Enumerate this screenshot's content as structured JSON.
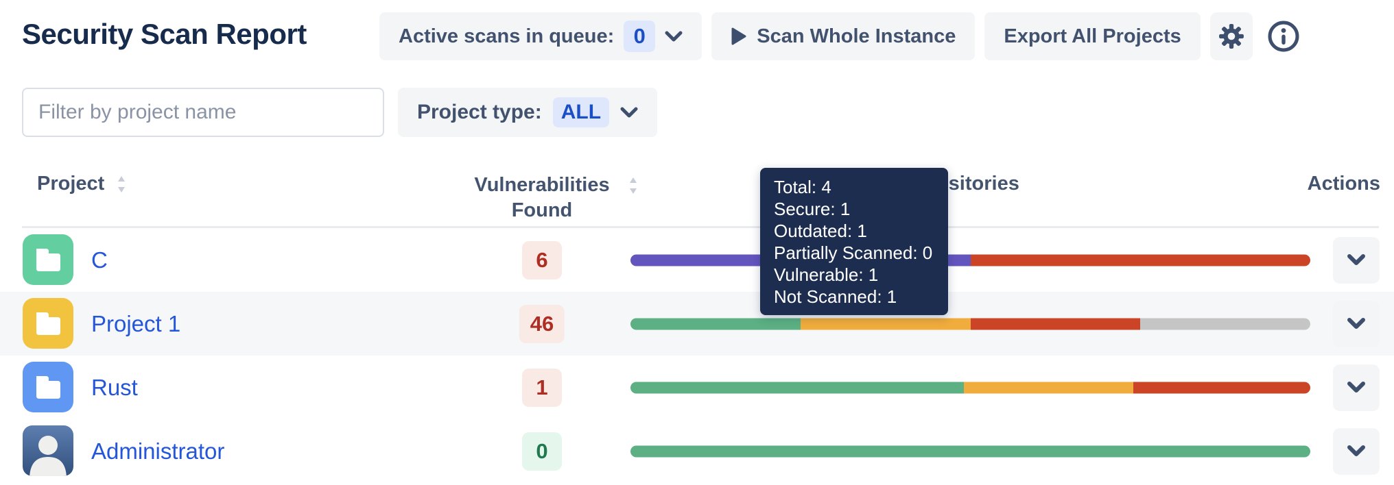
{
  "header": {
    "title": "Security Scan Report",
    "active_scans_label": "Active scans in queue:",
    "active_scans_count": "0",
    "scan_whole_instance_label": "Scan Whole Instance",
    "export_all_projects_label": "Export All Projects"
  },
  "filters": {
    "filter_placeholder": "Filter by project name",
    "project_type_label": "Project type:",
    "project_type_value": "ALL"
  },
  "table": {
    "columns": {
      "project": "Project",
      "vulnerabilities": "Vulnerabilities Found",
      "repositories": "Repositories",
      "actions": "Actions"
    },
    "rows": [
      {
        "name": "C",
        "icon": "folder",
        "tile_color": "#63CFA0",
        "vulnerabilities": "6",
        "severity": "bad",
        "hovered": false,
        "bar": [
          {
            "status": "scanning",
            "pct": 50
          },
          {
            "status": "vulnerable",
            "pct": 50
          }
        ]
      },
      {
        "name": "Project 1",
        "icon": "folder",
        "tile_color": "#F2C33F",
        "vulnerabilities": "46",
        "severity": "bad",
        "hovered": true,
        "bar": [
          {
            "status": "secure",
            "pct": 25
          },
          {
            "status": "outdated",
            "pct": 25
          },
          {
            "status": "vulnerable",
            "pct": 25
          },
          {
            "status": "not_scanned",
            "pct": 25
          }
        ]
      },
      {
        "name": "Rust",
        "icon": "folder",
        "tile_color": "#5F97F2",
        "vulnerabilities": "1",
        "severity": "bad",
        "hovered": false,
        "bar": [
          {
            "status": "secure",
            "pct": 49
          },
          {
            "status": "outdated",
            "pct": 25
          },
          {
            "status": "vulnerable",
            "pct": 26
          }
        ]
      },
      {
        "name": "Administrator",
        "icon": "avatar",
        "tile_color": "#31507C",
        "vulnerabilities": "0",
        "severity": "good",
        "hovered": false,
        "bar": [
          {
            "status": "secure",
            "pct": 100
          }
        ]
      }
    ]
  },
  "status_colors": {
    "secure": "#5CB083",
    "outdated": "#F0AC3C",
    "vulnerable": "#CC4426",
    "not_scanned": "#C5C5C5",
    "scanning": "#6355BE"
  },
  "tooltip": {
    "items": [
      {
        "label": "Total",
        "value": "4"
      },
      {
        "label": "Secure",
        "value": "1"
      },
      {
        "label": "Outdated",
        "value": "1"
      },
      {
        "label": "Partially Scanned",
        "value": "0"
      },
      {
        "label": "Vulnerable",
        "value": "1"
      },
      {
        "label": "Not Scanned",
        "value": "1"
      }
    ]
  },
  "accent_colors": {
    "link_blue": "#2456D9",
    "badge_blue_bg": "#DEE7FB",
    "badge_blue_text": "#1A4FC6",
    "tooltip_bg": "#1D2D50",
    "title_text": "#172B4D"
  }
}
